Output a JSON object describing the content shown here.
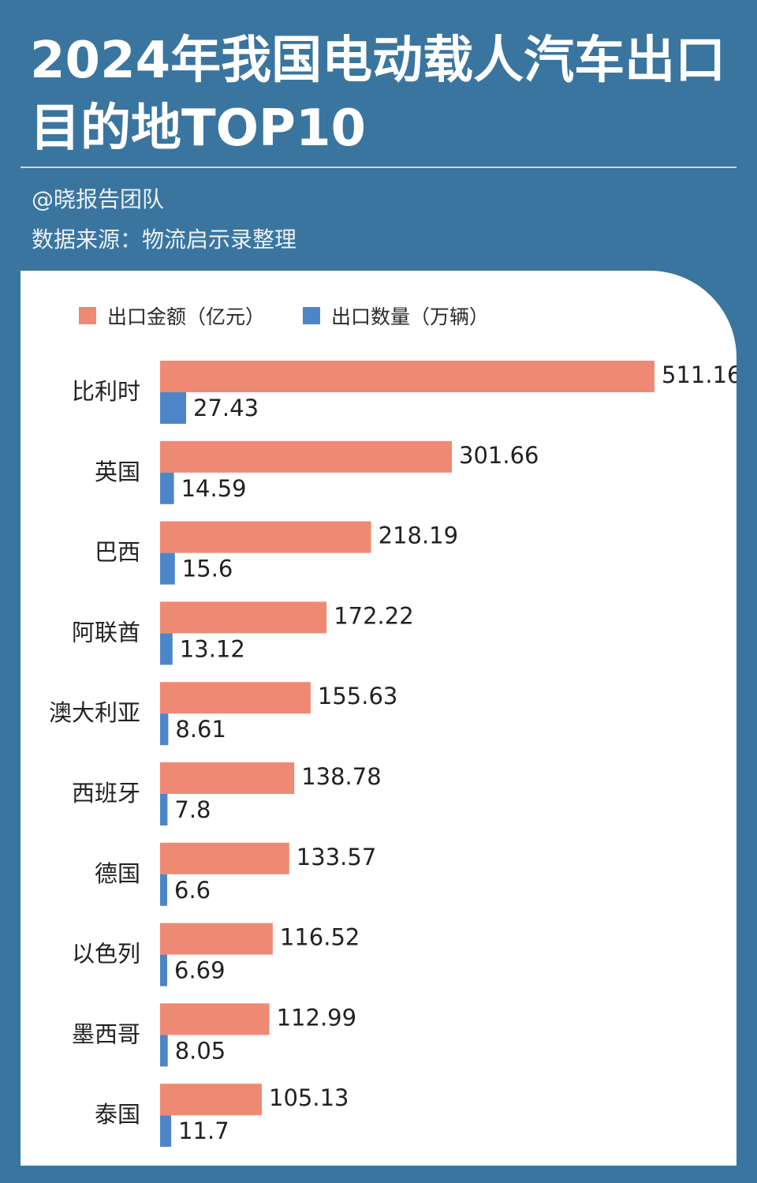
{
  "header": {
    "title_line1": "2024年我国电动载人汽车出口",
    "title_line2": "目的地TOP10",
    "author": "@晓报告团队",
    "source": "数据来源：物流启示录整理"
  },
  "colors": {
    "background": "#3a75a0",
    "card": "#ffffff",
    "amount_bar": "#ee8a73",
    "quantity_bar": "#4d86c8"
  },
  "chart_data": {
    "type": "bar",
    "orientation": "horizontal",
    "title": "2024年我国电动载人汽车出口目的地TOP10",
    "categories": [
      "比利时",
      "英国",
      "巴西",
      "阿联酋",
      "澳大利亚",
      "西班牙",
      "德国",
      "以色列",
      "墨西哥",
      "泰国"
    ],
    "series": [
      {
        "name": "出口金额（亿元）",
        "color": "#ee8a73",
        "values": [
          511.16,
          301.66,
          218.19,
          172.22,
          155.63,
          138.78,
          133.57,
          116.52,
          112.99,
          105.13
        ],
        "labels": [
          "511.16",
          "301.66",
          "218.19",
          "172.22",
          "155.63",
          "138.78",
          "133.57",
          "116.52",
          "112.99",
          "105.13"
        ]
      },
      {
        "name": "出口数量（万辆）",
        "color": "#4d86c8",
        "values": [
          27.43,
          14.59,
          15.6,
          13.12,
          8.61,
          7.8,
          6.6,
          6.69,
          8.05,
          11.7
        ],
        "labels": [
          "27.43",
          "14.59",
          "15.6",
          "13.12",
          "8.61",
          "7.8",
          "6.6",
          "6.69",
          "8.05",
          "11.7"
        ]
      }
    ],
    "legend_position": "top-left",
    "grid": false
  }
}
